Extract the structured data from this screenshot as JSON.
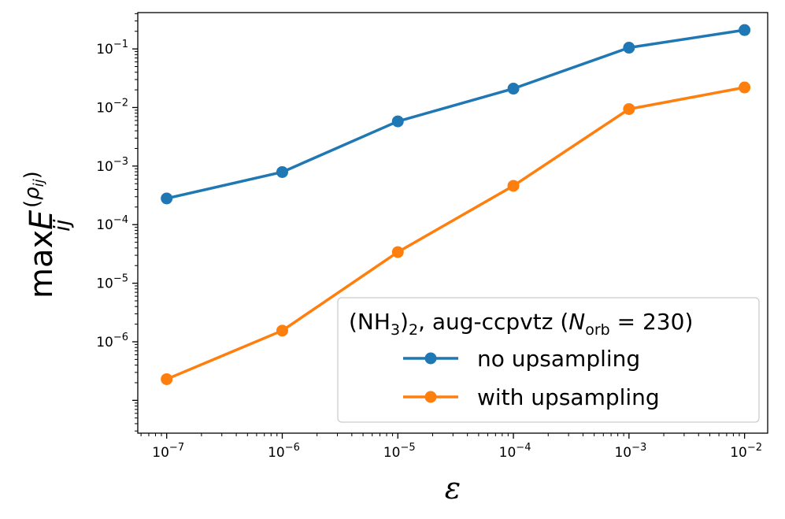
{
  "chart_data": {
    "type": "line",
    "xscale": "log",
    "yscale": "log",
    "xlabel": "ε",
    "ylabel": {
      "prefix": "max",
      "subscript": "ij",
      "symbol": "E",
      "superscript_open": "(",
      "superscript_rho": "ρ",
      "superscript_sub": "ij",
      "superscript_close": ")"
    },
    "xlim_exp": [
      -7.25,
      -1.8
    ],
    "ylim_exp": [
      -7.56,
      -0.38
    ],
    "x_exponents": [
      -7,
      -6,
      -5,
      -4,
      -3,
      -2
    ],
    "x_tick_labels": [
      {
        "base": "10",
        "exp": "−7"
      },
      {
        "base": "10",
        "exp": "−6"
      },
      {
        "base": "10",
        "exp": "−5"
      },
      {
        "base": "10",
        "exp": "−4"
      },
      {
        "base": "10",
        "exp": "−3"
      },
      {
        "base": "10",
        "exp": "−2"
      }
    ],
    "y_tick_labels": [
      {
        "value_exp": -1,
        "base": "10",
        "exp": "−1"
      },
      {
        "value_exp": -2,
        "base": "10",
        "exp": "−2"
      },
      {
        "value_exp": -3,
        "base": "10",
        "exp": "−3"
      },
      {
        "value_exp": -4,
        "base": "10",
        "exp": "−4"
      },
      {
        "value_exp": -5,
        "base": "10",
        "exp": "−5"
      },
      {
        "value_exp": -6,
        "base": "10",
        "exp": "−6"
      }
    ],
    "x": [
      1e-07,
      1e-06,
      1e-05,
      0.0001,
      0.001,
      0.01
    ],
    "series": [
      {
        "name": "no upsampling",
        "color": "#1f77b4",
        "values": [
          0.00028,
          0.00079,
          0.0058,
          0.021,
          0.105,
          0.21
        ]
      },
      {
        "name": "with upsampling",
        "color": "#ff7f0e",
        "values": [
          2.3e-07,
          1.55e-06,
          3.4e-05,
          0.00046,
          0.0094,
          0.022
        ]
      }
    ],
    "legend": {
      "placement": "lower-right",
      "title_parts": {
        "pre": "(NH",
        "sub3": "3",
        "close": ")",
        "sub2": "2",
        "mid": ", aug-ccpvtz (",
        "N": "N",
        "Nsub": "orb",
        "eq": " = 230)"
      }
    }
  }
}
